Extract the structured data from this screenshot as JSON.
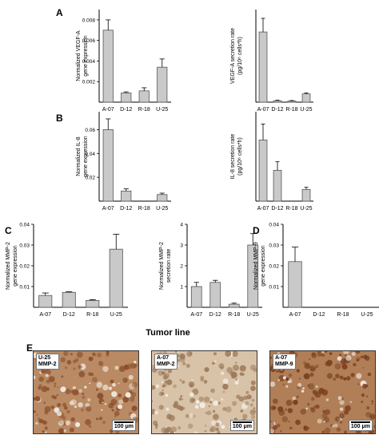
{
  "figure": {
    "tumor_line_label": "Tumor line",
    "bar_color": "#c9c9c9",
    "edge_color": "#555555"
  },
  "chart_data": [
    {
      "panel": "A",
      "type": "bar",
      "categories": [
        "A-07",
        "D-12",
        "R-18",
        "U-25"
      ],
      "values": [
        0.007,
        0.0009,
        0.0011,
        0.0034
      ],
      "errors": [
        0.001,
        0.0001,
        0.0003,
        0.0008
      ],
      "ylabel": [
        "Normalized VEGF-A",
        "gene expression"
      ],
      "ylim": [
        0,
        0.009
      ],
      "yticks": [
        0.002,
        0.004,
        0.006,
        0.008
      ],
      "ytick_labels": [
        "0.002",
        "0.004",
        "0.006",
        "0.008"
      ]
    },
    {
      "panel": "",
      "type": "bar",
      "categories": [
        "A-07",
        "D-12",
        "R-18",
        "U-25"
      ],
      "values": [
        720,
        15,
        12,
        85
      ],
      "errors": [
        140,
        5,
        5,
        10
      ],
      "ylabel": [
        "VEGF-A secretion rate",
        "(pg/10⁶ cells*h)"
      ],
      "ylim": [
        0,
        950
      ],
      "yticks": [],
      "ytick_labels": []
    },
    {
      "panel": "B",
      "type": "bar",
      "categories": [
        "A-07",
        "D-12",
        "R-18",
        "U-25"
      ],
      "values": [
        0.06,
        0.0085,
        0.0,
        0.0055
      ],
      "errors": [
        0.009,
        0.0018,
        0.0,
        0.0012
      ],
      "ylabel": [
        "Normalized IL-8",
        "gene expression"
      ],
      "ylim": [
        0,
        0.075
      ],
      "yticks": [
        0.02,
        0.04,
        0.06
      ],
      "ytick_labels": [
        "0.02",
        "0.04",
        "0.06"
      ]
    },
    {
      "panel": "",
      "type": "bar",
      "categories": [
        "A-07",
        "D-12",
        "R-18",
        "U-25"
      ],
      "values": [
        575,
        290,
        0,
        110
      ],
      "errors": [
        150,
        80,
        0,
        20
      ],
      "ylabel": [
        "IL-8 secretion rate",
        "(pg/10⁶ cells*h)"
      ],
      "ylim": [
        0,
        840
      ],
      "yticks": [],
      "ytick_labels": []
    },
    {
      "panel": "C",
      "type": "bar",
      "categories": [
        "A-07",
        "D-12",
        "R-18",
        "U-25"
      ],
      "values": [
        0.0057,
        0.0072,
        0.0033,
        0.028
      ],
      "errors": [
        0.0012,
        0.0003,
        0.0004,
        0.0072
      ],
      "ylabel": [
        "Normalized MMP-2",
        "gene expression"
      ],
      "ylim": [
        0,
        0.04
      ],
      "yticks": [
        0.01,
        0.02,
        0.03,
        0.04
      ],
      "ytick_labels": [
        "0.01",
        "0.02",
        "0.03",
        "0.04"
      ]
    },
    {
      "panel": "",
      "type": "bar",
      "categories": [
        "A-07",
        "D-12",
        "R-18",
        "U-25"
      ],
      "values": [
        1.0,
        1.2,
        0.15,
        3.0
      ],
      "errors": [
        0.2,
        0.1,
        0.05,
        0.55
      ],
      "ylabel": [
        "Normalized MMP-2",
        "secretion rate"
      ],
      "ylim": [
        0,
        4
      ],
      "yticks": [
        1,
        2,
        3,
        4
      ],
      "ytick_labels": [
        "1",
        "2",
        "3",
        "4"
      ]
    },
    {
      "panel": "D",
      "type": "bar",
      "categories": [
        "A-07",
        "D-12",
        "R-18",
        "U-25"
      ],
      "values": [
        0.022,
        0,
        0,
        0
      ],
      "errors": [
        0.007,
        0,
        0,
        0
      ],
      "ylabel": [
        "Normalized MMP-9",
        "gene expression"
      ],
      "ylim": [
        0,
        0.04
      ],
      "yticks": [
        0.01,
        0.02,
        0.03,
        0.04
      ],
      "ytick_labels": [
        "0.01",
        "0.02",
        "0.03",
        "0.04"
      ]
    }
  ],
  "micrographs": {
    "panel": "E",
    "items": [
      {
        "label": "U-25\nMMP-2",
        "scale": "100 μm",
        "base": "#b98a63",
        "spot": "#8a4d2c"
      },
      {
        "label": "A-07\nMMP-2",
        "scale": "100 μm",
        "base": "#d8c3a8",
        "spot": "#9c7a5a"
      },
      {
        "label": "A-07\nMMP-9",
        "scale": "100 μm",
        "base": "#b07e57",
        "spot": "#7a3f1f"
      }
    ]
  }
}
